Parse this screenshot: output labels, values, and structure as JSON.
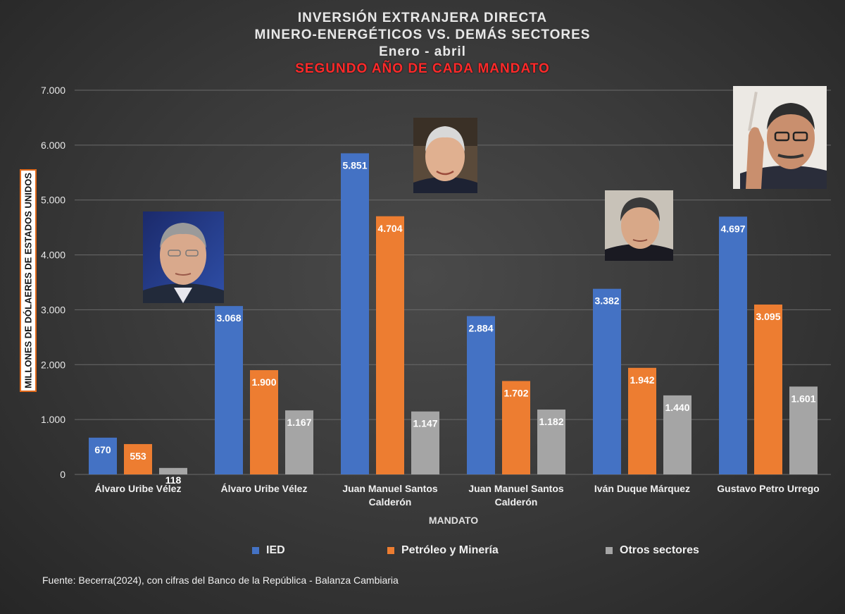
{
  "titles": {
    "line1": "INVERSIÓN EXTRANJERA DIRECTA",
    "line2": "MINERO-ENERGÉTICOS VS. DEMÁS SECTORES",
    "line3": "Enero - abril",
    "line4": "SEGUNDO AÑO DE CADA MANDATO"
  },
  "source": "Fuente:  Becerra(2024), con cifras del Banco de la República - Balanza Cambiaria",
  "colors": {
    "ied": "#4472c4",
    "petroleo": "#ed7d31",
    "otros": "#a5a5a5"
  },
  "portraits": [
    {
      "name": "portrait-uribe"
    },
    {
      "name": "portrait-santos"
    },
    {
      "name": "portrait-duque"
    },
    {
      "name": "portrait-petro"
    }
  ],
  "chart_data": {
    "type": "bar",
    "title": "INVERSIÓN EXTRANJERA DIRECTA MINERO-ENERGÉTICOS VS. DEMÁS SECTORES",
    "subtitle": "Enero - abril — SEGUNDO AÑO DE CADA MANDATO",
    "xlabel": "MANDATO",
    "ylabel": "MILLONES DE DÓLAERES DE ESTADOS UNIDOS",
    "ylim": [
      0,
      7000
    ],
    "yticks": [
      0,
      1000,
      2000,
      3000,
      4000,
      5000,
      6000,
      7000
    ],
    "ytick_labels": [
      "0",
      "1.000",
      "2.000",
      "3.000",
      "4.000",
      "5.000",
      "6.000",
      "7.000"
    ],
    "grid": true,
    "legend_position": "bottom",
    "categories": [
      [
        "Álvaro Uribe Vélez"
      ],
      [
        "Álvaro Uribe Vélez"
      ],
      [
        "Juan Manuel Santos",
        "Calderón"
      ],
      [
        "Juan Manuel Santos",
        "Calderón"
      ],
      [
        "Iván Duque Márquez"
      ],
      [
        "Gustavo Petro Urrego"
      ]
    ],
    "series": [
      {
        "name": "IED",
        "values": [
          670,
          3068,
          5851,
          2884,
          3382,
          4697
        ],
        "labels": [
          "670",
          "3.068",
          "5.851",
          "2.884",
          "3.382",
          "4.697"
        ]
      },
      {
        "name": "Petróleo y Minería",
        "values": [
          553,
          1900,
          4704,
          1702,
          1942,
          3095
        ],
        "labels": [
          "553",
          "1.900",
          "4.704",
          "1.702",
          "1.942",
          "3.095"
        ]
      },
      {
        "name": "Otros sectores",
        "values": [
          118,
          1167,
          1147,
          1182,
          1440,
          1601
        ],
        "labels": [
          "118",
          "1.167",
          "1.147",
          "1.182",
          "1.440",
          "1.601"
        ]
      }
    ]
  }
}
